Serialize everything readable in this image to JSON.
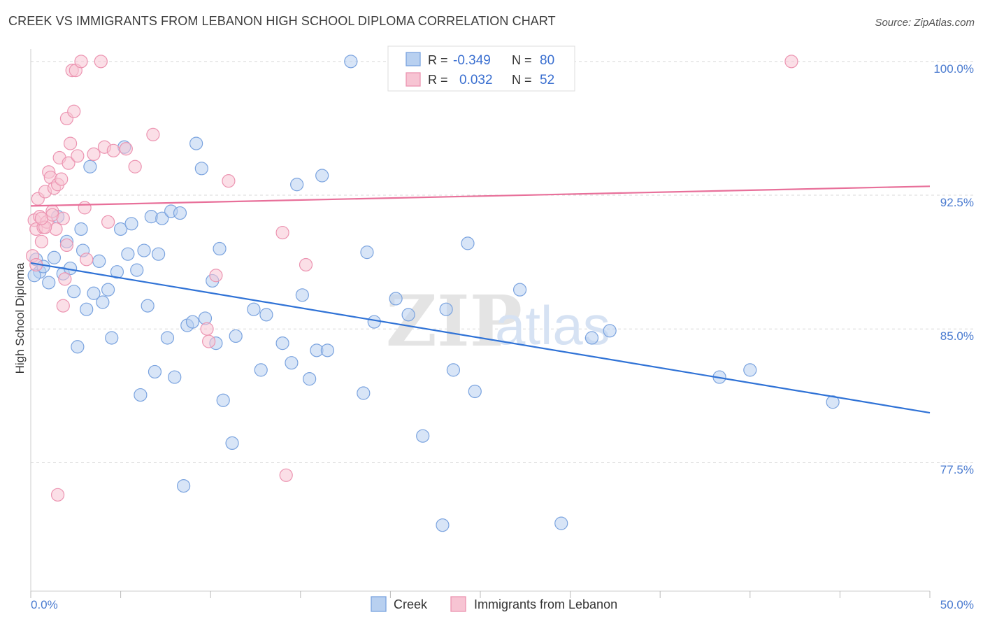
{
  "title": "CREEK VS IMMIGRANTS FROM LEBANON HIGH SCHOOL DIPLOMA CORRELATION CHART",
  "source": "Source: ZipAtlas.com",
  "watermark": {
    "zip": "ZIP",
    "atlas": "atlas"
  },
  "colors": {
    "creek_fill": "#b8d0f0",
    "creek_stroke": "#7aa3df",
    "creek_line": "#2f72d6",
    "lebanon_fill": "#f7c4d3",
    "lebanon_stroke": "#ec94b1",
    "lebanon_line": "#e8709a",
    "tick_text": "#4a7bd0",
    "grid": "#d8d8d8"
  },
  "legend": {
    "r_label": "R =",
    "n_label": "N =",
    "rows": [
      {
        "r": "-0.349",
        "n": "80"
      },
      {
        "r": "0.032",
        "n": "52"
      }
    ]
  },
  "chart_data": {
    "type": "scatter",
    "title": "CREEK VS IMMIGRANTS FROM LEBANON HIGH SCHOOL DIPLOMA CORRELATION CHART",
    "xlabel": "",
    "ylabel": "High School Diploma",
    "x_tick_labels": [
      "0.0%",
      "50.0%"
    ],
    "y_tick_labels": [
      "100.0%",
      "92.5%",
      "85.0%",
      "77.5%"
    ],
    "y_ticks": [
      100.0,
      92.5,
      85.0,
      77.5
    ],
    "xlim": [
      0,
      50
    ],
    "ylim": [
      70.3,
      100.7
    ],
    "grid": true,
    "legend_position": "bottom",
    "series": [
      {
        "name": "Creek",
        "trend": [
          [
            0,
            88.7
          ],
          [
            50,
            80.3
          ]
        ],
        "points": [
          [
            0.3,
            88.9
          ],
          [
            0.5,
            88.2
          ],
          [
            1.0,
            87.6
          ],
          [
            1.3,
            89.0
          ],
          [
            1.5,
            91.3
          ],
          [
            1.8,
            88.1
          ],
          [
            2.0,
            89.9
          ],
          [
            2.2,
            88.4
          ],
          [
            2.4,
            87.1
          ],
          [
            2.6,
            84.0
          ],
          [
            2.8,
            90.6
          ],
          [
            3.1,
            86.1
          ],
          [
            3.3,
            94.1
          ],
          [
            3.5,
            87.0
          ],
          [
            3.8,
            88.8
          ],
          [
            4.0,
            86.5
          ],
          [
            4.3,
            87.2
          ],
          [
            4.5,
            84.5
          ],
          [
            4.8,
            88.2
          ],
          [
            5.0,
            90.6
          ],
          [
            5.2,
            95.2
          ],
          [
            5.4,
            89.2
          ],
          [
            5.6,
            90.9
          ],
          [
            5.9,
            88.3
          ],
          [
            6.1,
            81.3
          ],
          [
            6.3,
            89.4
          ],
          [
            6.5,
            86.3
          ],
          [
            6.7,
            91.3
          ],
          [
            6.9,
            82.6
          ],
          [
            7.1,
            89.2
          ],
          [
            7.3,
            91.2
          ],
          [
            7.6,
            84.5
          ],
          [
            7.8,
            91.6
          ],
          [
            8.0,
            82.3
          ],
          [
            8.3,
            91.5
          ],
          [
            8.5,
            76.2
          ],
          [
            8.7,
            85.2
          ],
          [
            9.0,
            85.4
          ],
          [
            9.2,
            95.4
          ],
          [
            9.5,
            94.0
          ],
          [
            9.7,
            85.6
          ],
          [
            10.1,
            87.7
          ],
          [
            10.3,
            84.2
          ],
          [
            10.5,
            89.5
          ],
          [
            10.7,
            81.0
          ],
          [
            11.2,
            78.6
          ],
          [
            11.4,
            84.6
          ],
          [
            12.4,
            86.1
          ],
          [
            12.8,
            82.7
          ],
          [
            13.1,
            85.8
          ],
          [
            14.0,
            84.2
          ],
          [
            14.5,
            83.1
          ],
          [
            14.8,
            93.1
          ],
          [
            15.1,
            86.9
          ],
          [
            15.5,
            82.2
          ],
          [
            15.9,
            83.8
          ],
          [
            16.2,
            93.6
          ],
          [
            16.5,
            83.8
          ],
          [
            17.8,
            100.0
          ],
          [
            18.5,
            81.4
          ],
          [
            18.7,
            89.3
          ],
          [
            19.1,
            85.4
          ],
          [
            20.3,
            86.7
          ],
          [
            21.0,
            85.8
          ],
          [
            21.8,
            79.0
          ],
          [
            22.9,
            74.0
          ],
          [
            23.1,
            86.1
          ],
          [
            23.5,
            82.7
          ],
          [
            24.3,
            89.8
          ],
          [
            24.7,
            81.5
          ],
          [
            27.2,
            87.2
          ],
          [
            29.5,
            74.1
          ],
          [
            31.2,
            84.5
          ],
          [
            32.2,
            84.9
          ],
          [
            38.3,
            82.3
          ],
          [
            40.0,
            82.7
          ],
          [
            44.6,
            80.9
          ],
          [
            0.2,
            88.0
          ],
          [
            0.7,
            88.5
          ],
          [
            2.9,
            89.4
          ]
        ]
      },
      {
        "name": "Immigrants from Lebanon",
        "trend": [
          [
            0,
            91.9
          ],
          [
            50,
            93.0
          ]
        ],
        "points": [
          [
            0.1,
            89.1
          ],
          [
            0.2,
            91.1
          ],
          [
            0.3,
            90.6
          ],
          [
            0.4,
            92.3
          ],
          [
            0.5,
            91.3
          ],
          [
            0.6,
            89.9
          ],
          [
            0.7,
            90.7
          ],
          [
            0.8,
            92.7
          ],
          [
            0.9,
            91.0
          ],
          [
            1.0,
            93.8
          ],
          [
            1.1,
            93.5
          ],
          [
            1.2,
            91.6
          ],
          [
            1.3,
            92.9
          ],
          [
            1.4,
            90.6
          ],
          [
            1.5,
            93.1
          ],
          [
            1.6,
            94.6
          ],
          [
            1.7,
            93.4
          ],
          [
            1.8,
            86.3
          ],
          [
            1.9,
            87.8
          ],
          [
            2.0,
            96.8
          ],
          [
            2.1,
            94.3
          ],
          [
            2.2,
            95.4
          ],
          [
            2.3,
            99.5
          ],
          [
            2.5,
            99.5
          ],
          [
            2.6,
            94.7
          ],
          [
            2.8,
            100.0
          ],
          [
            3.0,
            91.8
          ],
          [
            3.1,
            88.9
          ],
          [
            3.5,
            94.8
          ],
          [
            3.9,
            100.0
          ],
          [
            4.1,
            95.2
          ],
          [
            4.3,
            91.0
          ],
          [
            4.6,
            95.0
          ],
          [
            5.3,
            95.1
          ],
          [
            5.8,
            94.1
          ],
          [
            6.8,
            95.9
          ],
          [
            9.8,
            85.0
          ],
          [
            9.9,
            84.3
          ],
          [
            10.3,
            88.0
          ],
          [
            11.0,
            93.3
          ],
          [
            14.0,
            90.4
          ],
          [
            14.2,
            76.8
          ],
          [
            15.3,
            88.6
          ],
          [
            42.3,
            100.0
          ],
          [
            1.5,
            75.7
          ],
          [
            2.0,
            89.7
          ],
          [
            0.8,
            90.7
          ],
          [
            1.2,
            91.4
          ],
          [
            0.3,
            88.6
          ],
          [
            1.8,
            91.2
          ],
          [
            2.4,
            97.2
          ],
          [
            0.6,
            91.2
          ]
        ]
      }
    ]
  }
}
